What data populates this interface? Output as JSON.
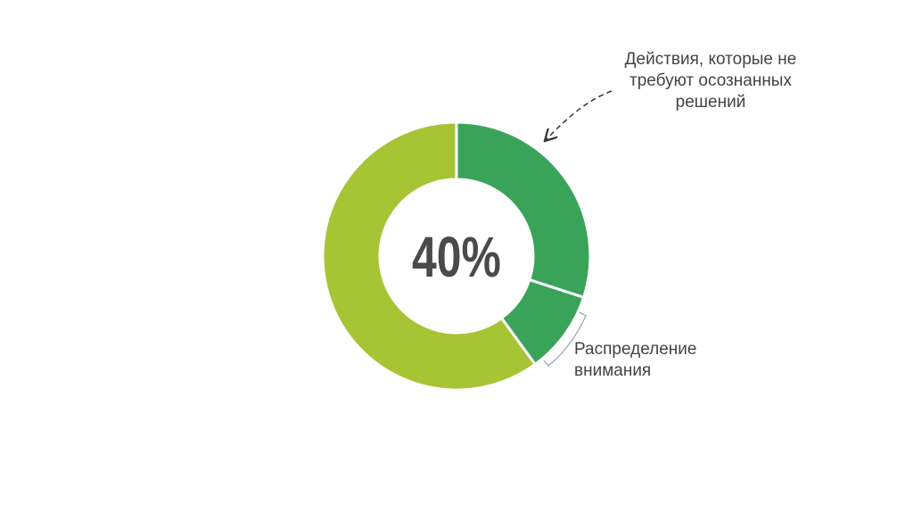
{
  "chart_data": {
    "type": "donut",
    "center_label": "40%",
    "categories": [
      "Действия, которые не требуют осознанных решений",
      "Распределение внимания",
      null
    ],
    "values": [
      30,
      10,
      60
    ],
    "colors": [
      "#3aa35a",
      "#3aa35a",
      "#a7c435"
    ]
  }
}
